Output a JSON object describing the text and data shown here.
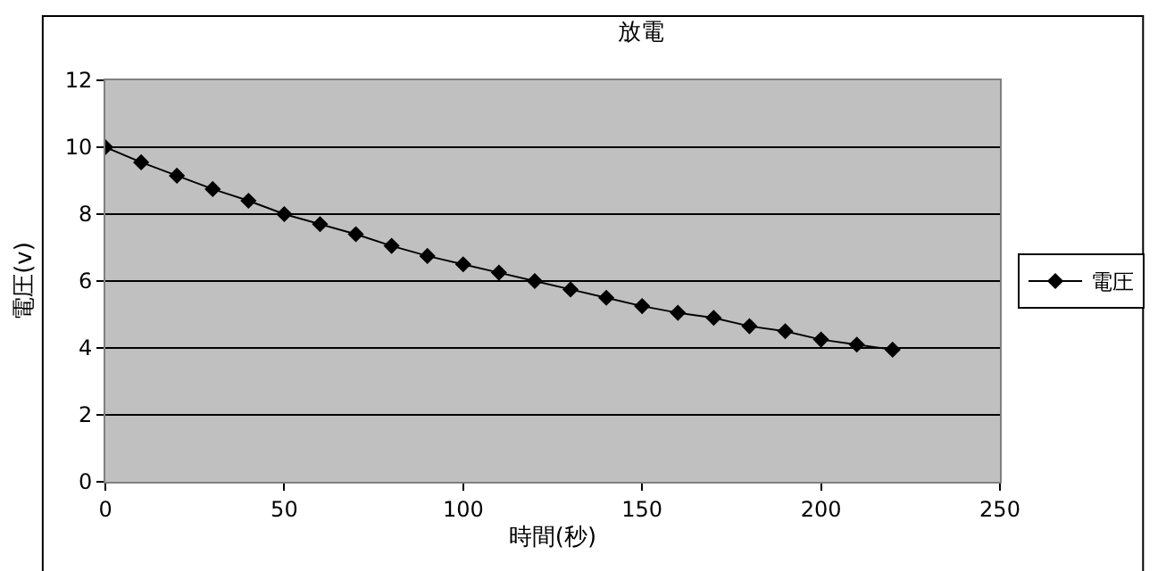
{
  "chart_data": {
    "type": "line",
    "title": "放電",
    "xlabel": "時間(秒)",
    "ylabel": "電圧(v)",
    "x": [
      0,
      10,
      20,
      30,
      40,
      50,
      60,
      70,
      80,
      90,
      100,
      110,
      120,
      130,
      140,
      150,
      160,
      170,
      180,
      190,
      200,
      210,
      220
    ],
    "series": [
      {
        "name": "電圧",
        "color": "#000000",
        "values": [
          10,
          9.55,
          9.15,
          8.75,
          8.4,
          8.0,
          7.7,
          7.4,
          7.05,
          6.75,
          6.5,
          6.25,
          6.0,
          5.75,
          5.5,
          5.25,
          5.05,
          4.9,
          4.65,
          4.5,
          4.25,
          4.1,
          3.95
        ]
      }
    ],
    "xlim": [
      0,
      250
    ],
    "xticks": [
      0,
      50,
      100,
      150,
      200,
      250
    ],
    "ylim": [
      0,
      12
    ],
    "yticks": [
      0,
      2,
      4,
      6,
      8,
      10,
      12
    ],
    "grid": "y",
    "legend": "right",
    "marker": "diamond",
    "line_style": "solid"
  }
}
